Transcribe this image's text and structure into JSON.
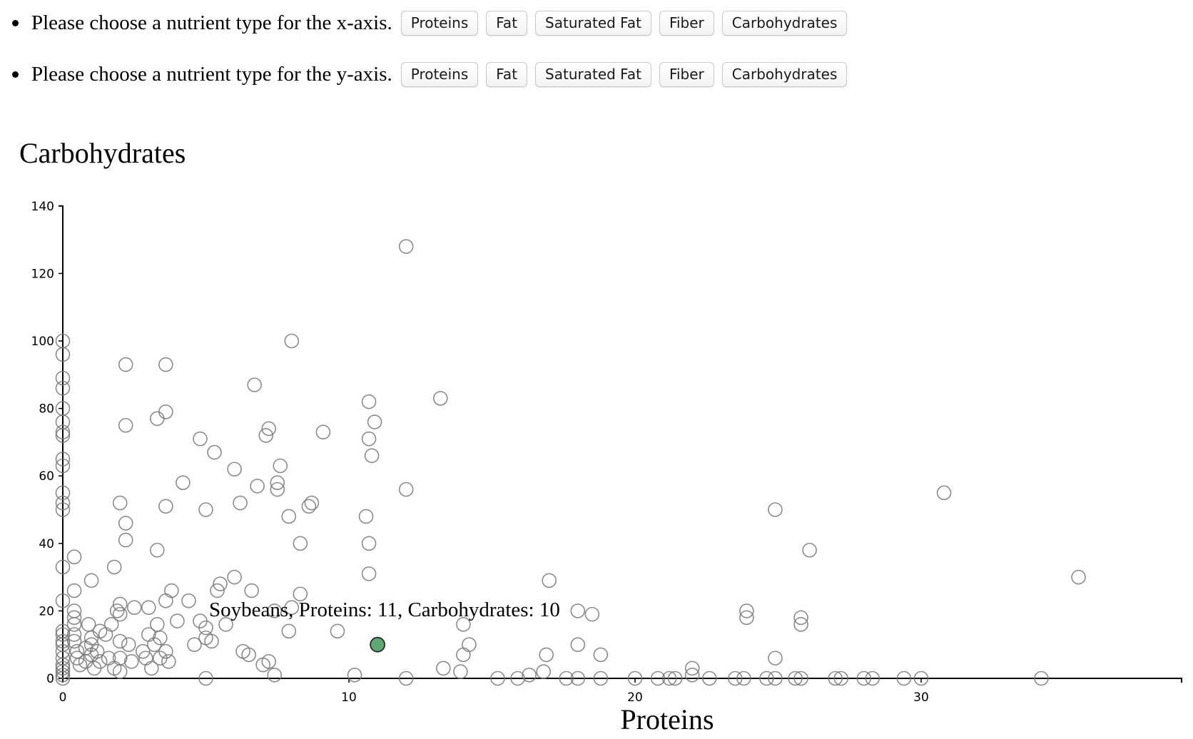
{
  "x_axis_selector": {
    "prompt": "Please choose a nutrient type for the x-axis.",
    "options": [
      "Proteins",
      "Fat",
      "Saturated Fat",
      "Fiber",
      "Carbohydrates"
    ]
  },
  "y_axis_selector": {
    "prompt": "Please choose a nutrient type for the y-axis.",
    "options": [
      "Proteins",
      "Fat",
      "Saturated Fat",
      "Fiber",
      "Carbohydrates"
    ]
  },
  "colors": {
    "point_stroke": "#777777",
    "highlight_fill": "#5fa873",
    "axis": "#000000"
  },
  "chart_data": {
    "type": "scatter",
    "xlabel": "Proteins",
    "ylabel": "Carbohydrates",
    "xlim": [
      0,
      39
    ],
    "ylim": [
      0,
      140
    ],
    "xticks": [
      0,
      10,
      20,
      30
    ],
    "yticks": [
      0,
      20,
      40,
      60,
      80,
      100,
      120,
      140
    ],
    "points": [
      [
        0,
        100
      ],
      [
        0,
        96
      ],
      [
        0,
        89
      ],
      [
        0,
        86
      ],
      [
        0,
        80
      ],
      [
        0,
        76
      ],
      [
        0,
        73
      ],
      [
        0,
        72
      ],
      [
        0,
        65
      ],
      [
        0,
        63
      ],
      [
        0,
        55
      ],
      [
        0,
        52
      ],
      [
        0,
        50
      ],
      [
        0,
        33
      ],
      [
        0,
        23
      ],
      [
        0,
        14
      ],
      [
        0,
        13
      ],
      [
        0,
        11
      ],
      [
        0,
        10
      ],
      [
        0,
        8
      ],
      [
        0,
        6
      ],
      [
        0,
        4
      ],
      [
        0,
        3
      ],
      [
        0,
        2
      ],
      [
        0,
        1
      ],
      [
        0,
        0
      ],
      [
        0.4,
        36
      ],
      [
        0.4,
        26
      ],
      [
        0.4,
        20
      ],
      [
        0.4,
        18
      ],
      [
        0.4,
        16
      ],
      [
        0.4,
        13
      ],
      [
        0.4,
        11
      ],
      [
        0.5,
        8
      ],
      [
        0.5,
        6
      ],
      [
        0.6,
        4
      ],
      [
        0.8,
        9
      ],
      [
        0.8,
        5
      ],
      [
        0.9,
        16
      ],
      [
        1,
        12
      ],
      [
        1,
        10
      ],
      [
        1,
        7
      ],
      [
        1,
        29
      ],
      [
        1.1,
        3
      ],
      [
        1.2,
        8
      ],
      [
        1.3,
        5
      ],
      [
        1.3,
        14
      ],
      [
        1.5,
        13
      ],
      [
        1.6,
        6
      ],
      [
        1.7,
        16
      ],
      [
        1.8,
        3
      ],
      [
        1.8,
        33
      ],
      [
        1.9,
        20
      ],
      [
        2,
        22
      ],
      [
        2,
        19
      ],
      [
        2,
        11
      ],
      [
        2,
        6
      ],
      [
        2,
        2
      ],
      [
        2,
        52
      ],
      [
        2.2,
        93
      ],
      [
        2.2,
        75
      ],
      [
        2.2,
        46
      ],
      [
        2.2,
        41
      ],
      [
        2.3,
        10
      ],
      [
        2.4,
        5
      ],
      [
        2.5,
        21
      ],
      [
        2.8,
        8
      ],
      [
        2.9,
        6
      ],
      [
        3,
        21
      ],
      [
        3,
        13
      ],
      [
        3.1,
        3
      ],
      [
        3.2,
        10
      ],
      [
        3.3,
        77
      ],
      [
        3.3,
        38
      ],
      [
        3.3,
        16
      ],
      [
        3.4,
        12
      ],
      [
        3.4,
        6
      ],
      [
        3.6,
        93
      ],
      [
        3.6,
        79
      ],
      [
        3.6,
        51
      ],
      [
        3.6,
        23
      ],
      [
        3.6,
        8
      ],
      [
        3.8,
        26
      ],
      [
        3.7,
        5
      ],
      [
        4,
        17
      ],
      [
        4.2,
        58
      ],
      [
        4.4,
        23
      ],
      [
        4.6,
        10
      ],
      [
        4.8,
        17
      ],
      [
        4.8,
        71
      ],
      [
        5,
        50
      ],
      [
        5,
        15
      ],
      [
        5,
        12
      ],
      [
        5,
        0
      ],
      [
        5.2,
        11
      ],
      [
        5.3,
        67
      ],
      [
        5.4,
        26
      ],
      [
        5.5,
        28
      ],
      [
        5.7,
        16
      ],
      [
        6,
        62
      ],
      [
        6,
        30
      ],
      [
        6.2,
        52
      ],
      [
        6.3,
        8
      ],
      [
        6.5,
        7
      ],
      [
        6.6,
        26
      ],
      [
        6.7,
        87
      ],
      [
        6.8,
        57
      ],
      [
        7,
        4
      ],
      [
        7.1,
        72
      ],
      [
        7.2,
        74
      ],
      [
        7.2,
        5
      ],
      [
        7.4,
        20
      ],
      [
        7.4,
        1
      ],
      [
        7.5,
        58
      ],
      [
        7.5,
        56
      ],
      [
        7.6,
        63
      ],
      [
        7.9,
        48
      ],
      [
        7.9,
        14
      ],
      [
        8,
        100
      ],
      [
        8,
        21
      ],
      [
        8.3,
        40
      ],
      [
        8.3,
        25
      ],
      [
        8.6,
        51
      ],
      [
        8.7,
        52
      ],
      [
        9.1,
        73
      ],
      [
        9.6,
        14
      ],
      [
        10.2,
        1
      ],
      [
        10.6,
        48
      ],
      [
        10.7,
        40
      ],
      [
        10.7,
        31
      ],
      [
        10.7,
        82
      ],
      [
        10.7,
        71
      ],
      [
        10.8,
        66
      ],
      [
        10.9,
        76
      ],
      [
        12,
        128
      ],
      [
        12,
        56
      ],
      [
        12,
        0
      ],
      [
        13.2,
        83
      ],
      [
        13.3,
        3
      ],
      [
        13.9,
        2
      ],
      [
        14,
        16
      ],
      [
        14,
        7
      ],
      [
        14.2,
        10
      ],
      [
        15.2,
        0
      ],
      [
        15.9,
        0
      ],
      [
        16.3,
        1
      ],
      [
        16.8,
        2
      ],
      [
        16.9,
        7
      ],
      [
        17,
        29
      ],
      [
        17.6,
        0
      ],
      [
        18,
        20
      ],
      [
        18,
        10
      ],
      [
        18,
        0
      ],
      [
        18.5,
        19
      ],
      [
        18.8,
        7
      ],
      [
        18.8,
        0
      ],
      [
        20,
        0
      ],
      [
        20.8,
        0
      ],
      [
        21.2,
        0
      ],
      [
        21.4,
        0
      ],
      [
        22,
        3
      ],
      [
        22,
        1
      ],
      [
        22.6,
        0
      ],
      [
        23.5,
        0
      ],
      [
        23.8,
        0
      ],
      [
        23.9,
        20
      ],
      [
        23.9,
        18
      ],
      [
        24.6,
        0
      ],
      [
        24.9,
        6
      ],
      [
        24.9,
        50
      ],
      [
        24.9,
        0
      ],
      [
        25.6,
        0
      ],
      [
        25.8,
        0
      ],
      [
        25.8,
        18
      ],
      [
        25.8,
        16
      ],
      [
        26.1,
        38
      ],
      [
        27,
        0
      ],
      [
        27.2,
        0
      ],
      [
        28,
        0
      ],
      [
        28.3,
        0
      ],
      [
        29.4,
        0
      ],
      [
        30,
        0
      ],
      [
        30.8,
        55
      ],
      [
        34.2,
        0
      ],
      [
        35.5,
        30
      ]
    ],
    "highlight": {
      "label": "Soybeans, Proteins: 11, Carbohydrates: 10",
      "x": 11,
      "y": 10
    }
  }
}
